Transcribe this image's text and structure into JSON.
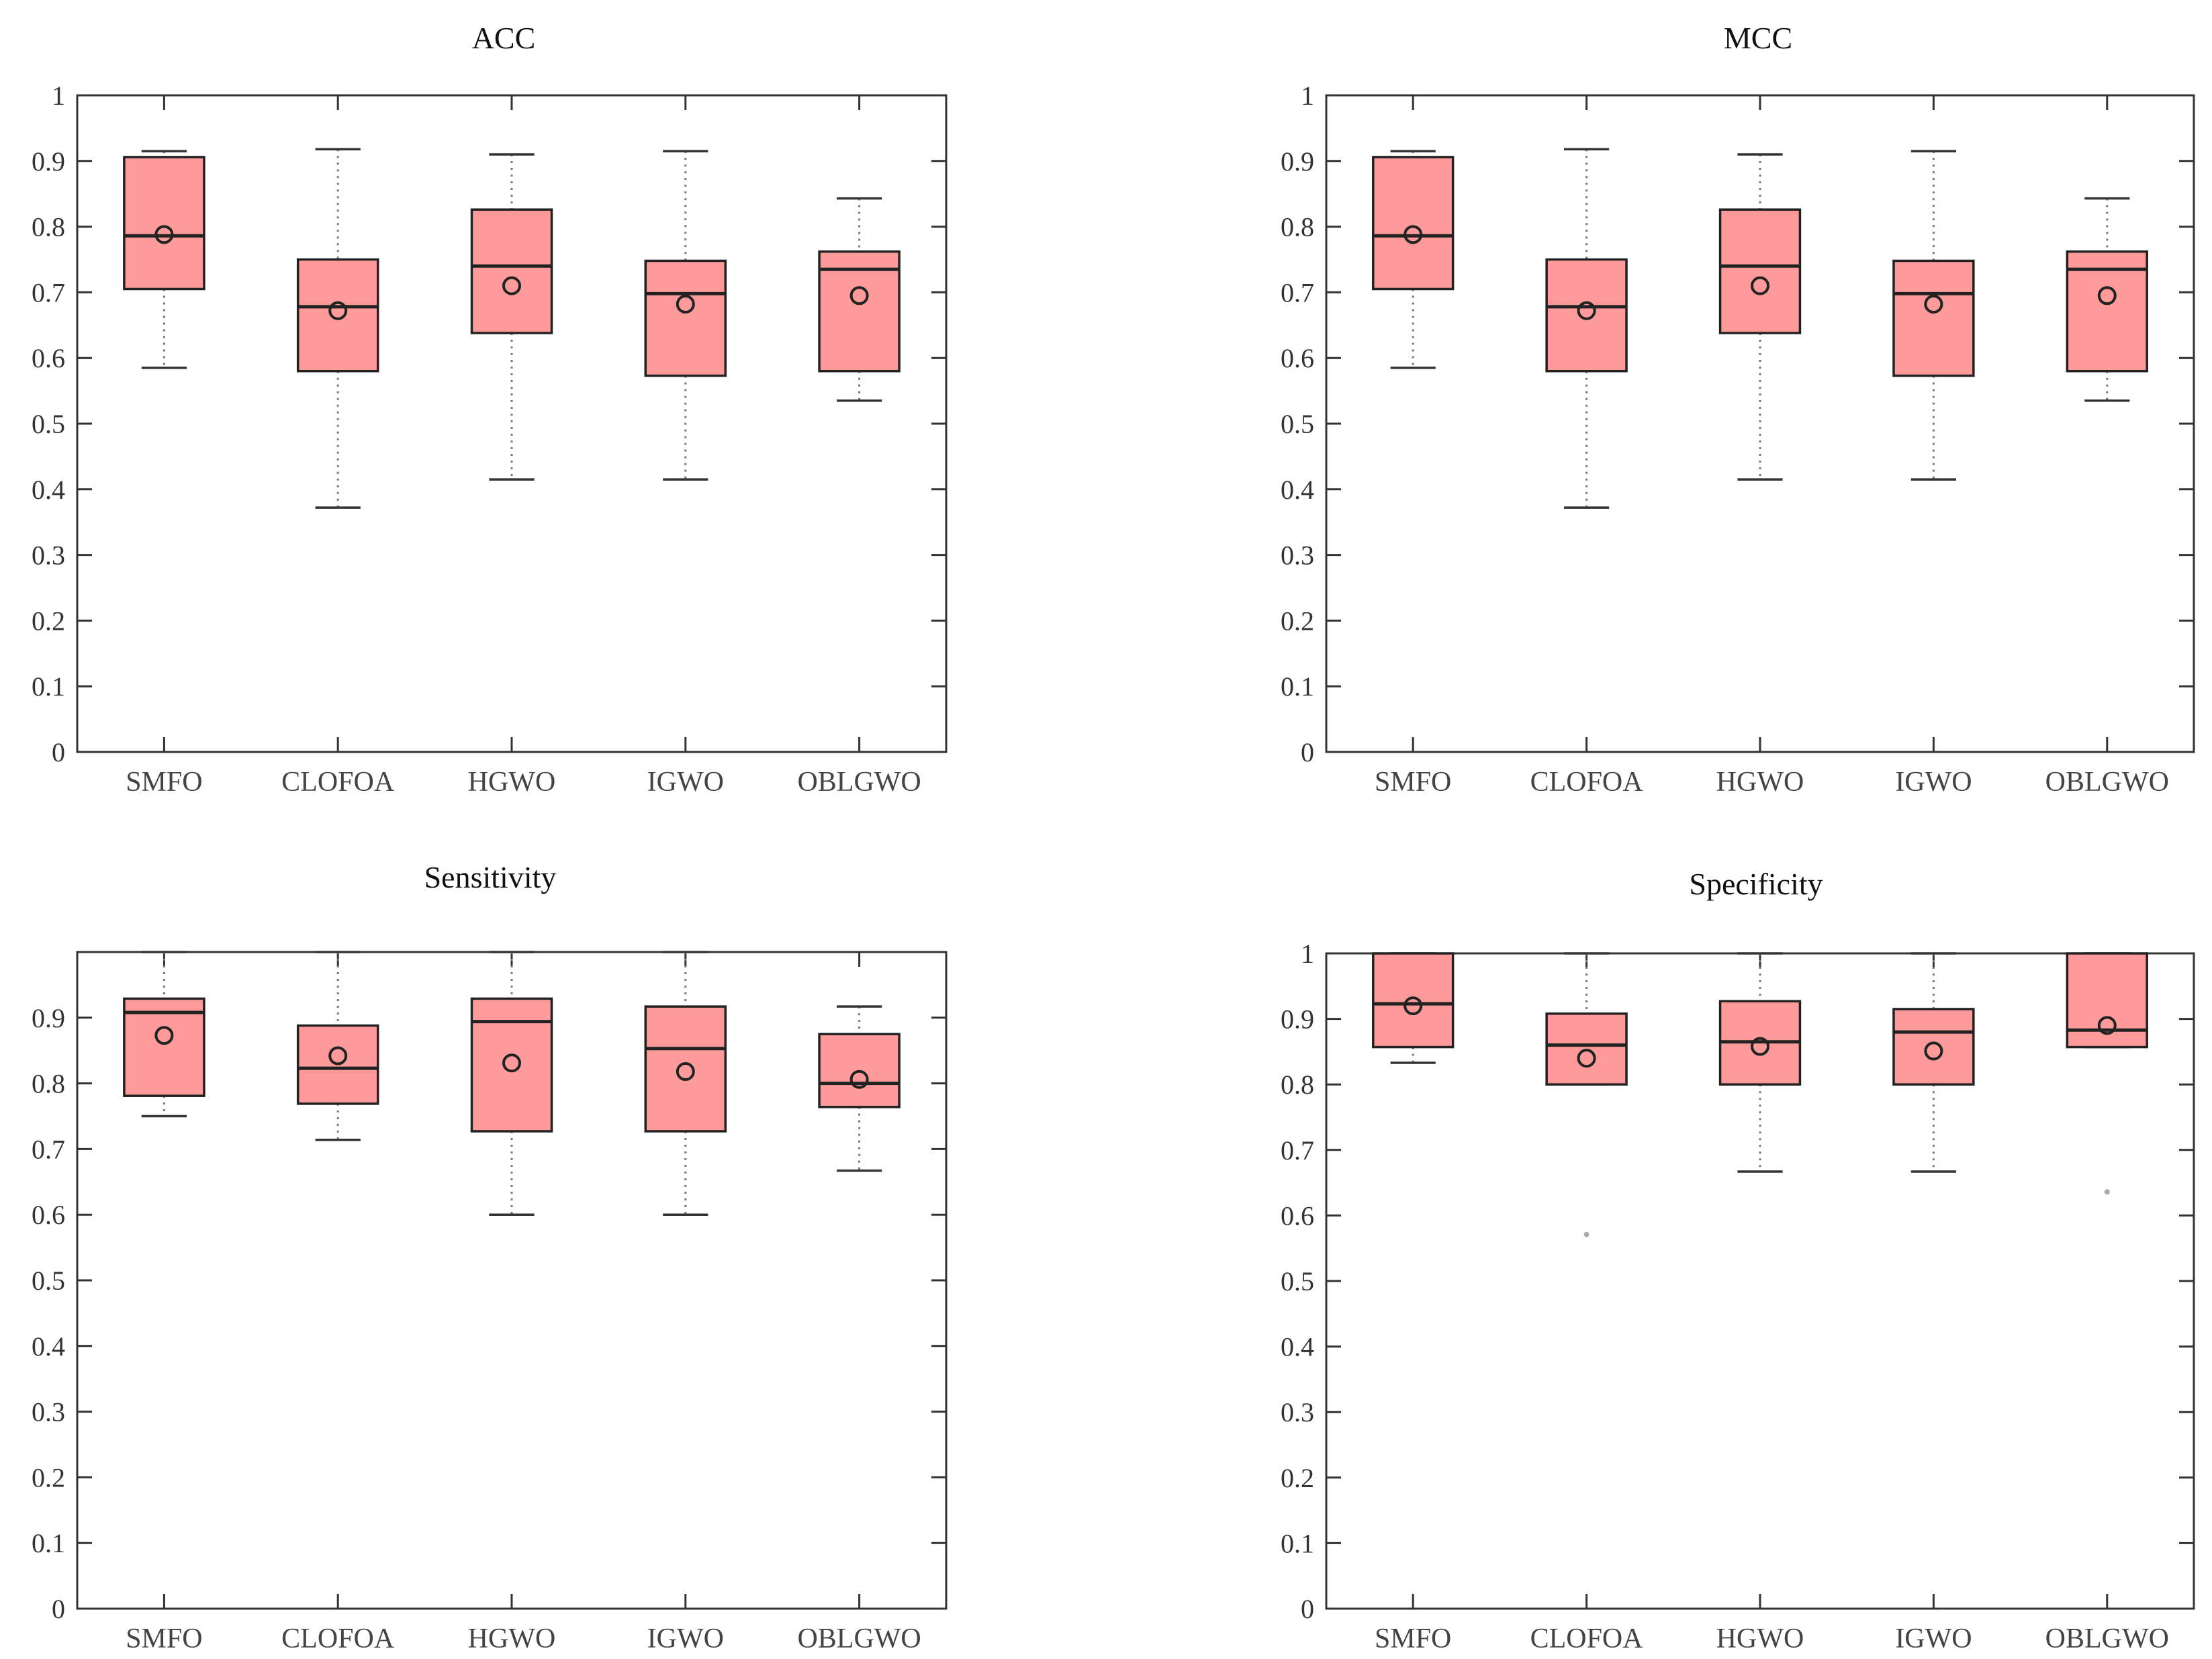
{
  "figure": {
    "colors": {
      "box_fill": "#ff9a9a",
      "box_edge": "#222222",
      "axis": "#333333",
      "whisker": "#777777"
    }
  },
  "chart_data": [
    {
      "type": "box",
      "title": "ACC",
      "categories": [
        "SMFO",
        "CLOFOA",
        "HGWO",
        "IGWO",
        "OBLGWO"
      ],
      "ylim": [
        0,
        1
      ],
      "yticks": [
        0,
        0.1,
        0.2,
        0.3,
        0.4,
        0.5,
        0.6,
        0.7,
        0.8,
        0.9,
        1
      ],
      "ytick_labels": [
        "0",
        "0.1",
        "0.2",
        "0.3",
        "0.4",
        "0.5",
        "0.6",
        "0.7",
        "0.8",
        "0.9",
        "1"
      ],
      "series": [
        {
          "name": "SMFO",
          "min": 0.585,
          "q1": 0.705,
          "median": 0.786,
          "q3": 0.906,
          "max": 0.915,
          "mean": 0.788
        },
        {
          "name": "CLOFOA",
          "min": 0.372,
          "q1": 0.58,
          "median": 0.678,
          "q3": 0.75,
          "max": 0.918,
          "mean": 0.672
        },
        {
          "name": "HGWO",
          "min": 0.415,
          "q1": 0.638,
          "median": 0.74,
          "q3": 0.826,
          "max": 0.91,
          "mean": 0.71
        },
        {
          "name": "IGWO",
          "min": 0.415,
          "q1": 0.573,
          "median": 0.698,
          "q3": 0.748,
          "max": 0.915,
          "mean": 0.682
        },
        {
          "name": "OBLGWO",
          "min": 0.535,
          "q1": 0.58,
          "median": 0.735,
          "q3": 0.762,
          "max": 0.843,
          "mean": 0.695
        }
      ]
    },
    {
      "type": "box",
      "title": "MCC",
      "categories": [
        "SMFO",
        "CLOFOA",
        "HGWO",
        "IGWO",
        "OBLGWO"
      ],
      "ylim": [
        0,
        1
      ],
      "yticks": [
        0,
        0.1,
        0.2,
        0.3,
        0.4,
        0.5,
        0.6,
        0.7,
        0.8,
        0.9,
        1
      ],
      "ytick_labels": [
        "0",
        "0.1",
        "0.2",
        "0.3",
        "0.4",
        "0.5",
        "0.6",
        "0.7",
        "0.8",
        "0.9",
        "1"
      ],
      "series": [
        {
          "name": "SMFO",
          "min": 0.585,
          "q1": 0.705,
          "median": 0.786,
          "q3": 0.906,
          "max": 0.915,
          "mean": 0.788
        },
        {
          "name": "CLOFOA",
          "min": 0.372,
          "q1": 0.58,
          "median": 0.678,
          "q3": 0.75,
          "max": 0.918,
          "mean": 0.672
        },
        {
          "name": "HGWO",
          "min": 0.415,
          "q1": 0.638,
          "median": 0.74,
          "q3": 0.826,
          "max": 0.91,
          "mean": 0.71
        },
        {
          "name": "IGWO",
          "min": 0.415,
          "q1": 0.573,
          "median": 0.698,
          "q3": 0.748,
          "max": 0.915,
          "mean": 0.682
        },
        {
          "name": "OBLGWO",
          "min": 0.535,
          "q1": 0.58,
          "median": 0.735,
          "q3": 0.762,
          "max": 0.843,
          "mean": 0.695
        }
      ]
    },
    {
      "type": "box",
      "title": "Sensitivity",
      "categories": [
        "SMFO",
        "CLOFOA",
        "HGWO",
        "IGWO",
        "OBLGWO"
      ],
      "ylim": [
        0,
        1
      ],
      "yticks": [
        0,
        0.1,
        0.2,
        0.3,
        0.4,
        0.5,
        0.6,
        0.7,
        0.8,
        0.9
      ],
      "ytick_labels": [
        "0",
        "0.1",
        "0.2",
        "0.3",
        "0.4",
        "0.5",
        "0.6",
        "0.7",
        "0.8",
        "0.9"
      ],
      "series": [
        {
          "name": "SMFO",
          "min": 0.75,
          "q1": 0.781,
          "median": 0.908,
          "q3": 0.929,
          "max": 1.0,
          "mean": 0.873
        },
        {
          "name": "CLOFOA",
          "min": 0.714,
          "q1": 0.769,
          "median": 0.823,
          "q3": 0.888,
          "max": 1.0,
          "mean": 0.842
        },
        {
          "name": "HGWO",
          "min": 0.6,
          "q1": 0.727,
          "median": 0.894,
          "q3": 0.929,
          "max": 1.0,
          "mean": 0.831
        },
        {
          "name": "IGWO",
          "min": 0.6,
          "q1": 0.727,
          "median": 0.853,
          "q3": 0.917,
          "max": 1.0,
          "mean": 0.818
        },
        {
          "name": "OBLGWO",
          "min": 0.667,
          "q1": 0.764,
          "median": 0.8,
          "q3": 0.875,
          "max": 0.917,
          "mean": 0.806
        }
      ]
    },
    {
      "type": "box",
      "title": "Specificity",
      "categories": [
        "SMFO",
        "CLOFOA",
        "HGWO",
        "IGWO",
        "OBLGWO"
      ],
      "ylim": [
        0,
        1
      ],
      "yticks": [
        0,
        0.1,
        0.2,
        0.3,
        0.4,
        0.5,
        0.6,
        0.7,
        0.8,
        0.9,
        1
      ],
      "ytick_labels": [
        "0",
        "0.1",
        "0.2",
        "0.3",
        "0.4",
        "0.5",
        "0.6",
        "0.7",
        "0.8",
        "0.9",
        "1"
      ],
      "series": [
        {
          "name": "SMFO",
          "min": 0.833,
          "q1": 0.857,
          "median": 0.923,
          "q3": 1.0,
          "max": 1.0,
          "mean": 0.92
        },
        {
          "name": "CLOFOA",
          "min": 0.8,
          "q1": 0.8,
          "median": 0.86,
          "q3": 0.908,
          "max": 1.0,
          "mean": 0.84,
          "outliers": [
            0.571
          ]
        },
        {
          "name": "HGWO",
          "min": 0.667,
          "q1": 0.8,
          "median": 0.865,
          "q3": 0.927,
          "max": 1.0,
          "mean": 0.858
        },
        {
          "name": "IGWO",
          "min": 0.667,
          "q1": 0.8,
          "median": 0.88,
          "q3": 0.915,
          "max": 1.0,
          "mean": 0.851
        },
        {
          "name": "OBLGWO",
          "min": 0.857,
          "q1": 0.857,
          "median": 0.883,
          "q3": 1.0,
          "max": 1.0,
          "mean": 0.89,
          "outliers": [
            0.636
          ]
        }
      ]
    }
  ]
}
